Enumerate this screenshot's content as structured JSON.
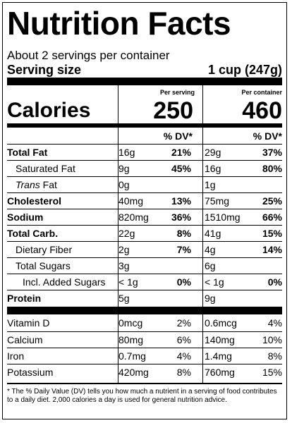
{
  "title": "Nutrition Facts",
  "servings_per_container": "About 2 servings per container",
  "serving_size_label": "Serving size",
  "serving_size_value": "1 cup (247g)",
  "col_header_serving": "Per serving",
  "col_header_container": "Per container",
  "calories_label": "Calories",
  "calories_serving": "250",
  "calories_container": "460",
  "dv_label_serving": "% DV*",
  "dv_label_container": "% DV*",
  "nutrients": [
    {
      "name": "Total Fat",
      "amount_serving": "16g",
      "dv_serving": "21%",
      "amount_container": "29g",
      "dv_container": "37%"
    },
    {
      "name": "Saturated Fat",
      "amount_serving": "9g",
      "dv_serving": "45%",
      "amount_container": "16g",
      "dv_container": "80%"
    },
    {
      "name_italic": "Trans",
      "name_rest": " Fat",
      "amount_serving": "0g",
      "dv_serving": "",
      "amount_container": "1g",
      "dv_container": ""
    },
    {
      "name": "Cholesterol",
      "amount_serving": "40mg",
      "dv_serving": "13%",
      "amount_container": "75mg",
      "dv_container": "25%"
    },
    {
      "name": "Sodium",
      "amount_serving": "820mg",
      "dv_serving": "36%",
      "amount_container": "1510mg",
      "dv_container": "66%"
    },
    {
      "name": "Total Carb.",
      "amount_serving": "22g",
      "dv_serving": "8%",
      "amount_container": "41g",
      "dv_container": "15%"
    },
    {
      "name": "Dietary Fiber",
      "amount_serving": "2g",
      "dv_serving": "7%",
      "amount_container": "4g",
      "dv_container": "14%"
    },
    {
      "name": "Total Sugars",
      "amount_serving": "3g",
      "dv_serving": "",
      "amount_container": "6g",
      "dv_container": ""
    },
    {
      "name": "Incl. Added Sugars",
      "amount_serving": "< 1g",
      "dv_serving": "0%",
      "amount_container": "< 1g",
      "dv_container": "0%"
    },
    {
      "name": "Protein",
      "amount_serving": "5g",
      "dv_serving": "",
      "amount_container": "9g",
      "dv_container": ""
    }
  ],
  "vitamins": [
    {
      "name": "Vitamin D",
      "amount_serving": "0mcg",
      "dv_serving": "2%",
      "amount_container": "0.6mcg",
      "dv_container": "4%"
    },
    {
      "name": "Calcium",
      "amount_serving": "80mg",
      "dv_serving": "6%",
      "amount_container": "140mg",
      "dv_container": "10%"
    },
    {
      "name": "Iron",
      "amount_serving": "0.7mg",
      "dv_serving": "4%",
      "amount_container": "1.4mg",
      "dv_container": "8%"
    },
    {
      "name": "Potassium",
      "amount_serving": "420mg",
      "dv_serving": "8%",
      "amount_container": "760mg",
      "dv_container": "15%"
    }
  ],
  "footnote": "* The % Daily Value (DV) tells you how much a nutrient in a serving of food contributes to a daily diet. 2,000 calories a day is used for general nutrition advice."
}
